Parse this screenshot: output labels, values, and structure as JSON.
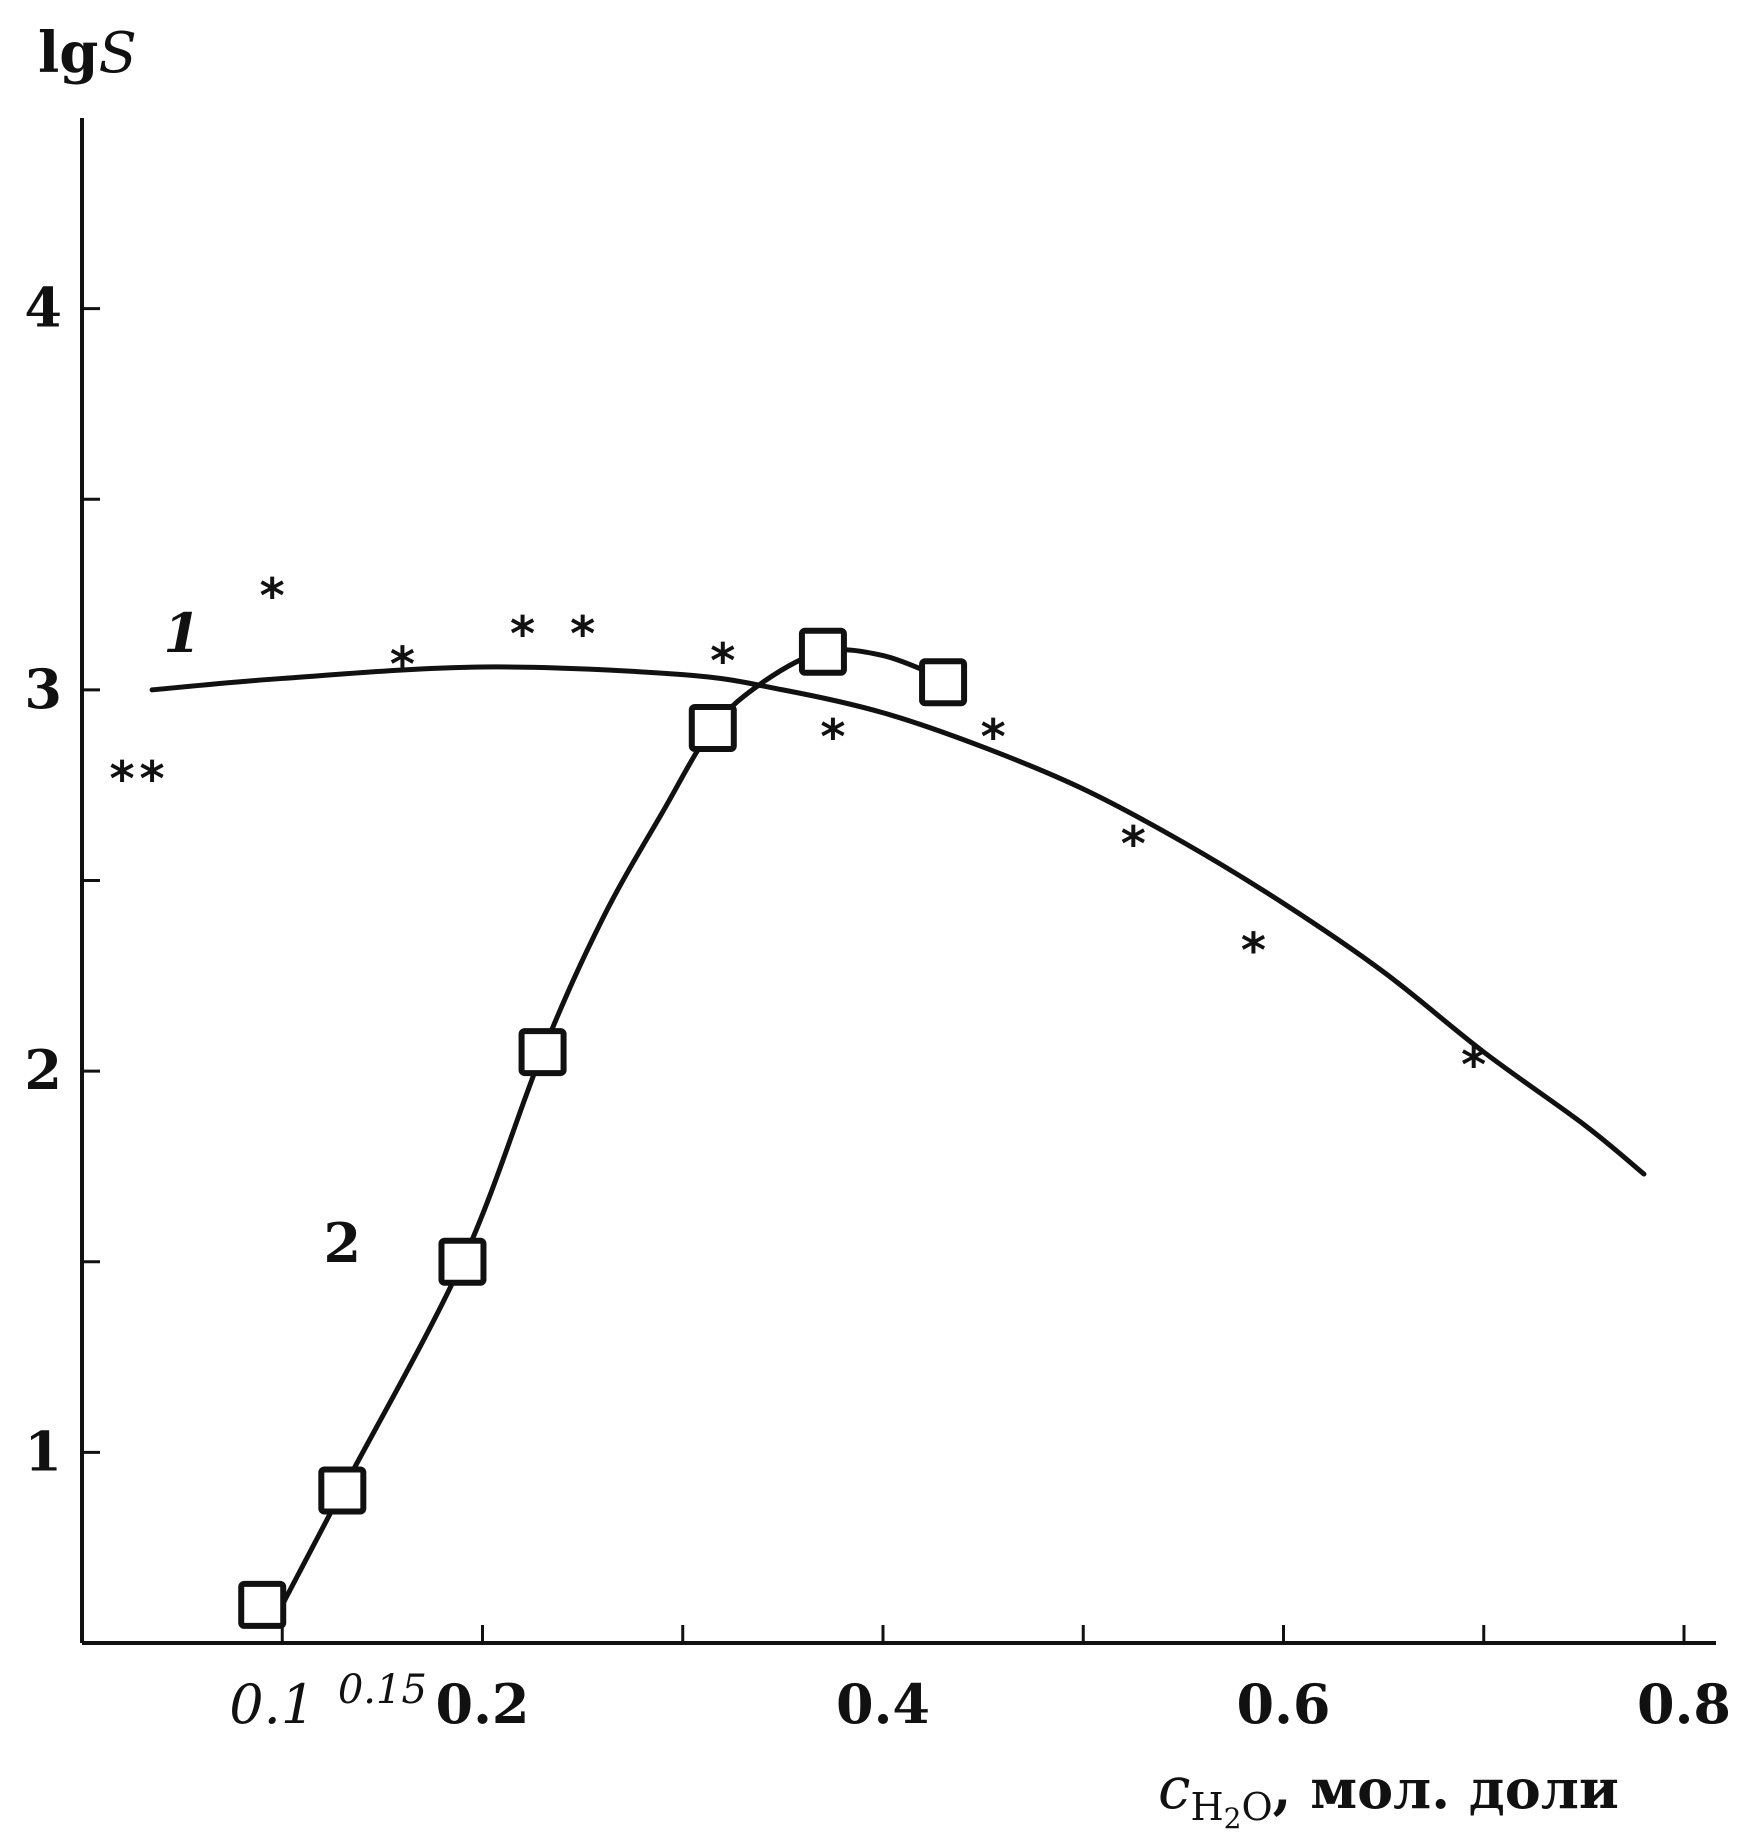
{
  "chart_data": {
    "type": "line",
    "xlabel": {
      "main": "c",
      "sub": "H",
      "sub2": "2",
      "sub3": "O",
      "rest": ", мол. доли"
    },
    "ylabel": {
      "prefix": "lg",
      "var": "S"
    },
    "xlim": [
      0.0,
      0.8
    ],
    "ylim": [
      0.5,
      4.5
    ],
    "x_ticks": [
      0.1,
      0.2,
      0.4,
      0.6,
      0.8
    ],
    "x_tick_labels": [
      "0.1",
      "0.2",
      "0.4",
      "0.6",
      "0.8"
    ],
    "x_minor_ticks": [
      0.1,
      0.2,
      0.3,
      0.4,
      0.5,
      0.6,
      0.7,
      0.8
    ],
    "extra_x_label": "0.15",
    "y_ticks": [
      1,
      2,
      3,
      4
    ],
    "y_tick_labels": [
      "1",
      "2",
      "3",
      "4"
    ],
    "y_minor_ticks": [
      1,
      1.5,
      2,
      2.5,
      3,
      3.5,
      4
    ],
    "grid": false,
    "series": [
      {
        "name": "1",
        "marker": "star",
        "points": [
          {
            "x": 0.02,
            "y": 2.77
          },
          {
            "x": 0.035,
            "y": 2.77
          },
          {
            "x": 0.095,
            "y": 3.25
          },
          {
            "x": 0.16,
            "y": 3.07
          },
          {
            "x": 0.22,
            "y": 3.15
          },
          {
            "x": 0.25,
            "y": 3.15
          },
          {
            "x": 0.32,
            "y": 3.08
          },
          {
            "x": 0.375,
            "y": 2.88
          },
          {
            "x": 0.455,
            "y": 2.88
          },
          {
            "x": 0.525,
            "y": 2.6
          },
          {
            "x": 0.585,
            "y": 2.32
          },
          {
            "x": 0.695,
            "y": 2.02
          }
        ],
        "fit": [
          {
            "x": 0.035,
            "y": 3.0
          },
          {
            "x": 0.1,
            "y": 3.03
          },
          {
            "x": 0.2,
            "y": 3.06
          },
          {
            "x": 0.3,
            "y": 3.04
          },
          {
            "x": 0.35,
            "y": 3.0
          },
          {
            "x": 0.4,
            "y": 2.94
          },
          {
            "x": 0.45,
            "y": 2.85
          },
          {
            "x": 0.5,
            "y": 2.74
          },
          {
            "x": 0.55,
            "y": 2.6
          },
          {
            "x": 0.6,
            "y": 2.44
          },
          {
            "x": 0.65,
            "y": 2.26
          },
          {
            "x": 0.7,
            "y": 2.05
          },
          {
            "x": 0.75,
            "y": 1.86
          },
          {
            "x": 0.78,
            "y": 1.73
          }
        ]
      },
      {
        "name": "2",
        "marker": "square",
        "points": [
          {
            "x": 0.09,
            "y": 0.6
          },
          {
            "x": 0.13,
            "y": 0.9
          },
          {
            "x": 0.19,
            "y": 1.5
          },
          {
            "x": 0.23,
            "y": 2.05
          },
          {
            "x": 0.315,
            "y": 2.9
          },
          {
            "x": 0.37,
            "y": 3.1
          },
          {
            "x": 0.43,
            "y": 3.02
          }
        ],
        "fit": [
          {
            "x": 0.095,
            "y": 0.55
          },
          {
            "x": 0.13,
            "y": 0.9
          },
          {
            "x": 0.19,
            "y": 1.5
          },
          {
            "x": 0.23,
            "y": 2.05
          },
          {
            "x": 0.26,
            "y": 2.4
          },
          {
            "x": 0.29,
            "y": 2.68
          },
          {
            "x": 0.315,
            "y": 2.9
          },
          {
            "x": 0.34,
            "y": 3.02
          },
          {
            "x": 0.37,
            "y": 3.1
          },
          {
            "x": 0.4,
            "y": 3.09
          },
          {
            "x": 0.43,
            "y": 3.03
          }
        ]
      }
    ],
    "annotations": [
      {
        "text": "1",
        "x": 0.05,
        "y": 3.1
      },
      {
        "text": "2",
        "x": 0.13,
        "y": 1.5
      }
    ]
  }
}
